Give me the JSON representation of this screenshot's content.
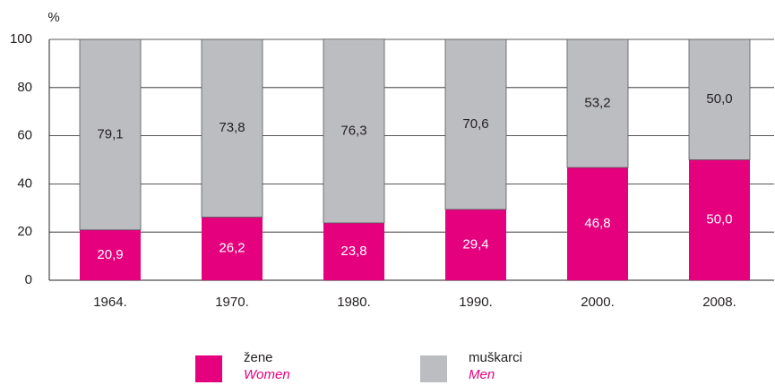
{
  "chart_data": {
    "type": "stacked_bar",
    "ylabel": "%",
    "categories": [
      "1964.",
      "1970.",
      "1980.",
      "1990.",
      "2000.",
      "2008."
    ],
    "series": [
      {
        "name": "žene",
        "name_en": "Women",
        "color": "#e5007e",
        "values": [
          20.9,
          26.2,
          23.8,
          29.4,
          46.8,
          50.0
        ],
        "value_labels": [
          "20,9",
          "26,2",
          "23,8",
          "29,4",
          "46,8",
          "50,0"
        ]
      },
      {
        "name": "muškarci",
        "name_en": "Men",
        "color": "#bcbdc0",
        "values": [
          79.1,
          73.8,
          76.3,
          70.6,
          53.2,
          50.0
        ],
        "value_labels": [
          "79,1",
          "73,8",
          "76,3",
          "70,6",
          "53,2",
          "50,0"
        ]
      }
    ],
    "ylim": [
      0,
      100
    ],
    "yticks": [
      0,
      20,
      40,
      60,
      80,
      100
    ],
    "grid": true
  }
}
